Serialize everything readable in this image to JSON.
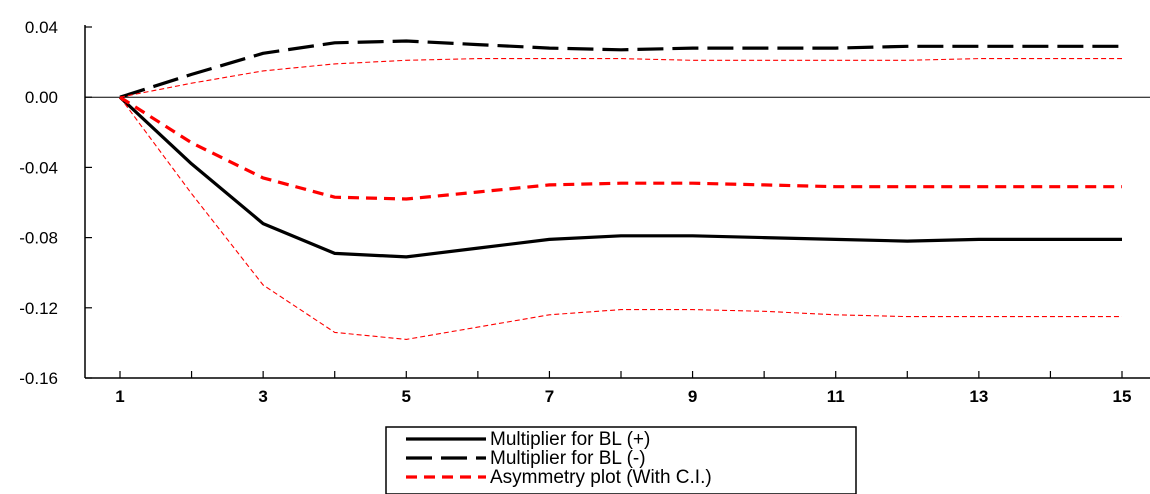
{
  "chart_data": {
    "type": "line",
    "x": [
      1,
      2,
      3,
      4,
      5,
      6,
      7,
      8,
      9,
      10,
      11,
      12,
      13,
      14,
      15
    ],
    "x_tick_labels": [
      "1",
      "3",
      "5",
      "7",
      "9",
      "11",
      "13",
      "15"
    ],
    "y_tick_labels": [
      "0.04",
      "0.00",
      "-0.04",
      "-0.08",
      "-0.12",
      "-0.16"
    ],
    "y_ticks": [
      0.04,
      0.0,
      -0.04,
      -0.08,
      -0.12,
      -0.16
    ],
    "ylim": [
      -0.16,
      0.04
    ],
    "xlim": [
      1,
      15
    ],
    "zero_line": true,
    "legend_position": "bottom-center",
    "series": [
      {
        "name": "Multiplier for BL (+)",
        "style": "solid",
        "color": "#000000",
        "values": [
          0.0,
          -0.038,
          -0.072,
          -0.089,
          -0.091,
          -0.086,
          -0.081,
          -0.079,
          -0.079,
          -0.08,
          -0.081,
          -0.082,
          -0.081,
          -0.081,
          -0.081
        ]
      },
      {
        "name": "Multiplier for BL (-)",
        "style": "long-dash",
        "color": "#000000",
        "values": [
          0.0,
          0.013,
          0.025,
          0.031,
          0.032,
          0.03,
          0.028,
          0.027,
          0.028,
          0.028,
          0.028,
          0.029,
          0.029,
          0.029,
          0.029
        ]
      },
      {
        "name": "Asymmetry plot (With C.I.)",
        "style": "dash",
        "color": "#ff0000",
        "values": [
          0.0,
          -0.026,
          -0.046,
          -0.057,
          -0.058,
          -0.054,
          -0.05,
          -0.049,
          -0.049,
          -0.05,
          -0.051,
          -0.051,
          -0.051,
          -0.051,
          -0.051
        ]
      },
      {
        "style": "thin-dash",
        "color": "#ff0000",
        "values": [
          0.0,
          0.008,
          0.015,
          0.019,
          0.021,
          0.022,
          0.022,
          0.022,
          0.021,
          0.021,
          0.021,
          0.021,
          0.022,
          0.022,
          0.022
        ]
      },
      {
        "style": "thin-dash",
        "color": "#ff0000",
        "values": [
          0.0,
          -0.055,
          -0.107,
          -0.134,
          -0.138,
          -0.131,
          -0.124,
          -0.121,
          -0.121,
          -0.122,
          -0.124,
          -0.125,
          -0.125,
          -0.125,
          -0.125
        ]
      }
    ]
  }
}
